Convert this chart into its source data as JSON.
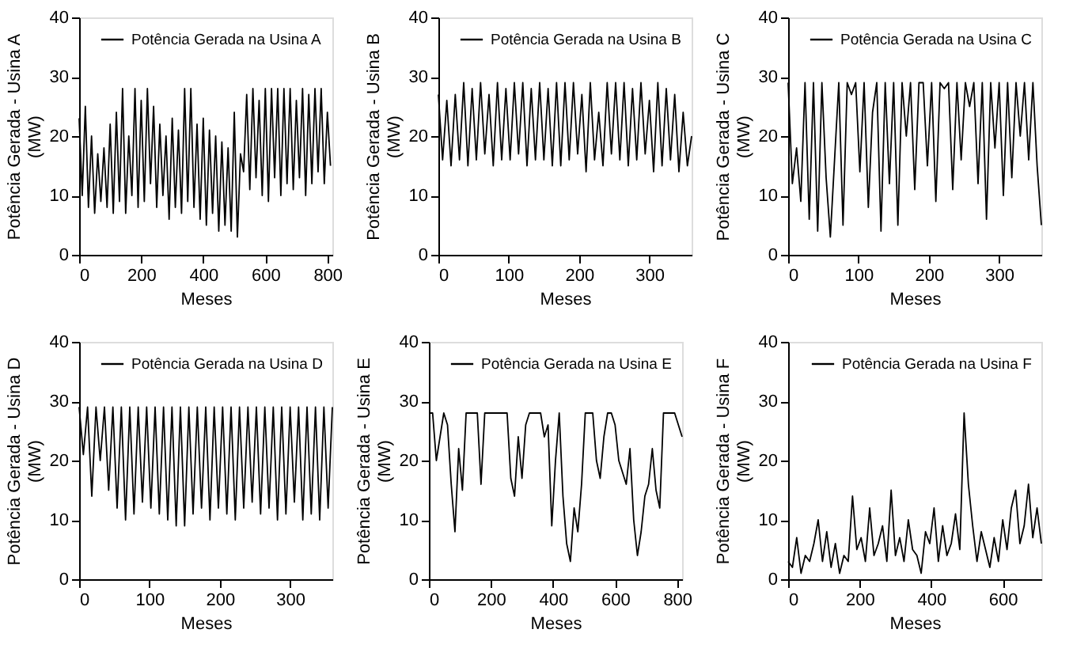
{
  "chart_data": [
    {
      "type": "line",
      "xlabel": "Meses",
      "ylabel": "Potência Gerada - Usina A\n(MW)",
      "xlim": [
        0,
        816
      ],
      "xticks": [
        0,
        200,
        400,
        600,
        800
      ],
      "ylim": [
        0,
        40
      ],
      "yticks": [
        0,
        10,
        20,
        30,
        40
      ],
      "grid": false,
      "legend": "top right",
      "x": [
        0,
        10,
        20,
        30,
        40,
        50,
        60,
        70,
        80,
        90,
        100,
        110,
        120,
        130,
        140,
        150,
        160,
        170,
        180,
        190,
        200,
        210,
        220,
        230,
        240,
        250,
        260,
        270,
        280,
        290,
        300,
        310,
        320,
        330,
        340,
        350,
        360,
        370,
        380,
        390,
        400,
        410,
        420,
        430,
        440,
        450,
        460,
        470,
        480,
        490,
        500,
        510,
        520,
        530,
        540,
        550,
        560,
        570,
        580,
        590,
        600,
        610,
        620,
        630,
        640,
        650,
        660,
        670,
        680,
        690,
        700,
        710,
        720,
        730,
        740,
        750,
        760,
        770,
        780,
        790,
        800,
        810
      ],
      "series": [
        {
          "name": "Potência Gerada na Usina A",
          "color": "#000000",
          "values": [
            23,
            10,
            25,
            8,
            20,
            7,
            17,
            9,
            18,
            8,
            22,
            7,
            24,
            9,
            28,
            7,
            20,
            10,
            28,
            8,
            26,
            9,
            28,
            12,
            25,
            8,
            22,
            10,
            20,
            6,
            23,
            8,
            21,
            7,
            28,
            9,
            28,
            8,
            22,
            6,
            23,
            5,
            21,
            7,
            20,
            4,
            19,
            5,
            18,
            4,
            24,
            3,
            17,
            14,
            27,
            11,
            28,
            13,
            26,
            10,
            28,
            9,
            28,
            13,
            28,
            10,
            28,
            12,
            28,
            11,
            26,
            13,
            28,
            10,
            27,
            12,
            28,
            14,
            28,
            12,
            24,
            15
          ]
        }
      ]
    },
    {
      "type": "line",
      "xlabel": "Meses",
      "ylabel": "Potência Gerada - Usina B\n(MW)",
      "xlim": [
        0,
        360
      ],
      "xticks": [
        0,
        100,
        200,
        300
      ],
      "ylim": [
        0,
        40
      ],
      "yticks": [
        0,
        10,
        20,
        30,
        40
      ],
      "grid": false,
      "legend": "top right",
      "x": [
        0,
        6,
        12,
        18,
        24,
        30,
        36,
        42,
        48,
        54,
        60,
        66,
        72,
        78,
        84,
        90,
        96,
        102,
        108,
        114,
        120,
        126,
        132,
        138,
        144,
        150,
        156,
        162,
        168,
        174,
        180,
        186,
        192,
        198,
        204,
        210,
        216,
        222,
        228,
        234,
        240,
        246,
        252,
        258,
        264,
        270,
        276,
        282,
        288,
        294,
        300,
        306,
        312,
        318,
        324,
        330,
        336,
        342,
        348,
        354,
        360
      ],
      "series": [
        {
          "name": "Potência Gerada na Usina B",
          "color": "#000000",
          "values": [
            27,
            16,
            26,
            15,
            27,
            16,
            29,
            15,
            28,
            16,
            29,
            17,
            27,
            15,
            29,
            16,
            28,
            16,
            29,
            17,
            29,
            15,
            28,
            16,
            29,
            16,
            28,
            15,
            29,
            15,
            29,
            16,
            29,
            17,
            27,
            14,
            29,
            16,
            24,
            15,
            29,
            17,
            29,
            16,
            29,
            15,
            28,
            16,
            29,
            17,
            26,
            14,
            29,
            15,
            28,
            16,
            27,
            14,
            24,
            15,
            20
          ]
        }
      ]
    },
    {
      "type": "line",
      "xlabel": "Meses",
      "ylabel": "Potência Gerada - Usina C\n(MW)",
      "xlim": [
        0,
        360
      ],
      "xticks": [
        0,
        100,
        200,
        300
      ],
      "ylim": [
        0,
        40
      ],
      "yticks": [
        0,
        10,
        20,
        30,
        40
      ],
      "grid": false,
      "legend": "top right",
      "x": [
        0,
        6,
        12,
        18,
        24,
        30,
        36,
        42,
        48,
        54,
        60,
        66,
        72,
        78,
        84,
        90,
        96,
        102,
        108,
        114,
        120,
        126,
        132,
        138,
        144,
        150,
        156,
        162,
        168,
        174,
        180,
        186,
        192,
        198,
        204,
        210,
        216,
        222,
        228,
        234,
        240,
        246,
        252,
        258,
        264,
        270,
        276,
        282,
        288,
        294,
        300,
        306,
        312,
        318,
        324,
        330,
        336,
        342,
        348,
        354,
        360
      ],
      "series": [
        {
          "name": "Potência Gerada na Usina C",
          "color": "#000000",
          "values": [
            29,
            12,
            18,
            9,
            29,
            6,
            29,
            4,
            29,
            13,
            3,
            16,
            29,
            5,
            29,
            27,
            29,
            14,
            29,
            8,
            24,
            29,
            4,
            29,
            12,
            29,
            5,
            29,
            20,
            29,
            11,
            29,
            29,
            15,
            29,
            9,
            29,
            28,
            29,
            11,
            29,
            16,
            29,
            25,
            29,
            12,
            29,
            6,
            29,
            18,
            29,
            10,
            29,
            13,
            29,
            20,
            29,
            16,
            29,
            15,
            5
          ]
        }
      ]
    },
    {
      "type": "line",
      "xlabel": "Meses",
      "ylabel": "Potência Gerada - Usina D\n(MW)",
      "xlim": [
        0,
        360
      ],
      "xticks": [
        0,
        100,
        200,
        300
      ],
      "ylim": [
        0,
        40
      ],
      "yticks": [
        0,
        10,
        20,
        30,
        40
      ],
      "grid": false,
      "legend": "top right",
      "x": [
        0,
        6,
        12,
        18,
        24,
        30,
        36,
        42,
        48,
        54,
        60,
        66,
        72,
        78,
        84,
        90,
        96,
        102,
        108,
        114,
        120,
        126,
        132,
        138,
        144,
        150,
        156,
        162,
        168,
        174,
        180,
        186,
        192,
        198,
        204,
        210,
        216,
        222,
        228,
        234,
        240,
        246,
        252,
        258,
        264,
        270,
        276,
        282,
        288,
        294,
        300,
        306,
        312,
        318,
        324,
        330,
        336,
        342,
        348,
        354,
        360
      ],
      "series": [
        {
          "name": "Potência Gerada na Usina D",
          "color": "#000000",
          "values": [
            29,
            21,
            29,
            14,
            29,
            20,
            29,
            15,
            29,
            12,
            29,
            10,
            29,
            11,
            29,
            13,
            29,
            12,
            29,
            11,
            29,
            10,
            29,
            9,
            29,
            9,
            29,
            11,
            29,
            12,
            29,
            10,
            29,
            12,
            29,
            11,
            29,
            10,
            29,
            12,
            29,
            13,
            29,
            11,
            29,
            12,
            29,
            10,
            29,
            11,
            29,
            13,
            29,
            10,
            29,
            11,
            29,
            10,
            29,
            12,
            29
          ]
        }
      ]
    },
    {
      "type": "line",
      "xlabel": "Meses",
      "ylabel": "Potência Gerada - Usina E\n(MW)",
      "xlim": [
        0,
        816
      ],
      "xticks": [
        0,
        200,
        400,
        600,
        800
      ],
      "ylim": [
        0,
        40
      ],
      "yticks": [
        0,
        10,
        20,
        30,
        40
      ],
      "grid": false,
      "legend": "top right",
      "x": [
        0,
        12,
        24,
        36,
        48,
        60,
        72,
        84,
        96,
        108,
        120,
        132,
        144,
        156,
        168,
        180,
        192,
        204,
        216,
        228,
        240,
        252,
        264,
        276,
        288,
        300,
        312,
        324,
        336,
        348,
        360,
        372,
        384,
        396,
        408,
        420,
        432,
        444,
        456,
        468,
        480,
        492,
        504,
        516,
        528,
        540,
        552,
        564,
        576,
        588,
        600,
        612,
        624,
        636,
        648,
        660,
        672,
        684,
        696,
        708,
        720,
        732,
        744,
        756,
        768,
        780,
        792,
        804,
        816
      ],
      "series": [
        {
          "name": "Potência Gerada na Usina E",
          "color": "#000000",
          "values": [
            28,
            28,
            20,
            24,
            28,
            26,
            16,
            8,
            22,
            15,
            28,
            28,
            28,
            28,
            16,
            28,
            28,
            28,
            28,
            28,
            28,
            28,
            17,
            14,
            24,
            17,
            26,
            28,
            28,
            28,
            28,
            24,
            26,
            9,
            20,
            28,
            14,
            6,
            3,
            12,
            8,
            16,
            28,
            28,
            28,
            20,
            17,
            24,
            28,
            28,
            26,
            20,
            18,
            16,
            22,
            10,
            4,
            8,
            14,
            16,
            22,
            15,
            12,
            28,
            28,
            28,
            28,
            26,
            24
          ]
        }
      ]
    },
    {
      "type": "line",
      "xlabel": "Meses",
      "ylabel": "Potência Gerada - Usina F\n(MW)",
      "xlim": [
        0,
        708
      ],
      "xticks": [
        0,
        200,
        400,
        600
      ],
      "ylim": [
        0,
        40
      ],
      "yticks": [
        0,
        10,
        20,
        30,
        40
      ],
      "grid": false,
      "legend": "top right",
      "x": [
        0,
        12,
        24,
        36,
        48,
        60,
        72,
        84,
        96,
        108,
        120,
        132,
        144,
        156,
        168,
        180,
        192,
        204,
        216,
        228,
        240,
        252,
        264,
        276,
        288,
        300,
        312,
        324,
        336,
        348,
        360,
        372,
        384,
        396,
        408,
        420,
        432,
        444,
        456,
        468,
        480,
        492,
        504,
        516,
        528,
        540,
        552,
        564,
        576,
        588,
        600,
        612,
        624,
        636,
        648,
        660,
        672,
        684,
        696,
        708
      ],
      "series": [
        {
          "name": "Potência Gerada na Usina F",
          "color": "#000000",
          "values": [
            3,
            2,
            7,
            1,
            4,
            3,
            6,
            10,
            3,
            8,
            2,
            6,
            1,
            4,
            3,
            14,
            5,
            7,
            3,
            12,
            4,
            6,
            9,
            3,
            15,
            4,
            7,
            3,
            10,
            5,
            4,
            1,
            8,
            6,
            12,
            3,
            9,
            4,
            6,
            11,
            5,
            28,
            16,
            9,
            3,
            8,
            5,
            2,
            7,
            3,
            10,
            5,
            12,
            15,
            6,
            9,
            16,
            7,
            12,
            6
          ]
        }
      ]
    }
  ]
}
